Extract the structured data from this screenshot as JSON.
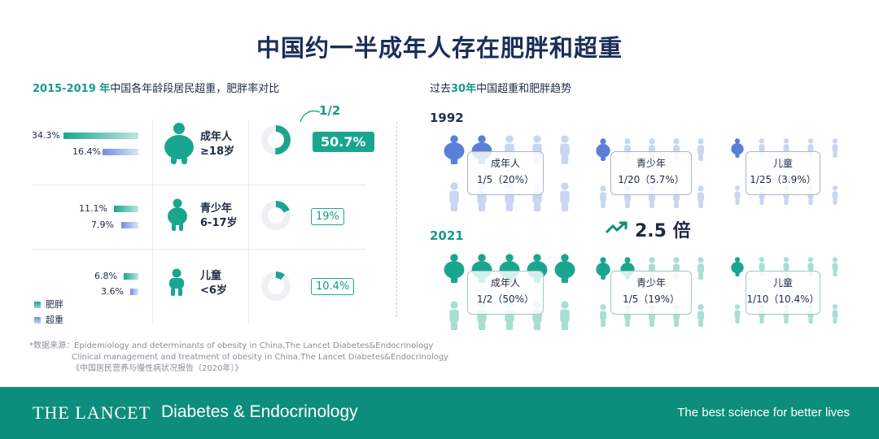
{
  "title": "中国约一半成年人存在肥胖和超重",
  "left": {
    "title_year": "2015-2019 年",
    "title_rest": "中国各年龄段居民超重，肥胖率对比",
    "half_label": "1/2",
    "rows": [
      {
        "ob_label": "34.3%",
        "ow_label": "16.4%",
        "name": "成年人",
        "age": "≥18岁",
        "callout": "50.7%"
      },
      {
        "ob_label": "11.1%",
        "ow_label": "7.9%",
        "name": "青少年",
        "age": "6-17岁",
        "callout": "19%"
      },
      {
        "ob_label": "6.8%",
        "ow_label": "3.6%",
        "name": "儿童",
        "age": "<6岁",
        "callout": "10.4%"
      }
    ],
    "legend": {
      "obese": "肥胖",
      "overweight": "超重"
    }
  },
  "chart_data": {
    "type": "bar",
    "categories": [
      "成年人",
      "青少年",
      "儿童"
    ],
    "series": [
      {
        "name": "肥胖",
        "values": [
          34.3,
          11.1,
          6.8
        ]
      },
      {
        "name": "超重",
        "values": [
          16.4,
          7.9,
          3.6
        ]
      }
    ],
    "donut_percent": [
      50.7,
      19,
      10.4
    ]
  },
  "source": {
    "lines": [
      "*数据来源：Epidemiology and determinants of obesity in China,The Lancet Diabetes&Endocrinology",
      "Clinical management and treatment of obesity in China,The Lancet Diabetes&Endocrinology",
      "《中国居民营养与慢性病状况报告（2020年）》"
    ]
  },
  "right": {
    "title_pre": "过去",
    "title_year": "30年",
    "title_rest": "中国超重和肥胖趋势",
    "y1992": "1992",
    "y2021": "2021",
    "growth": "2.5 倍",
    "groups1992": [
      {
        "name": "成年人",
        "ratio": "1/5（20%）"
      },
      {
        "name": "青少年",
        "ratio": "1/20（5.7%）"
      },
      {
        "name": "儿童",
        "ratio": "1/25（3.9%）"
      }
    ],
    "groups2021": [
      {
        "name": "成年人",
        "ratio": "1/2（50%）"
      },
      {
        "name": "青少年",
        "ratio": "1/5（19%）"
      },
      {
        "name": "儿童",
        "ratio": "1/10（10.4%）"
      }
    ]
  },
  "colors": {
    "teal": "#1aa68e",
    "blue": "#6f8ee0",
    "dark": "#1b2e5a",
    "footer": "#0d8d7c"
  },
  "footer": {
    "brand": "THE LANCET",
    "journal": "Diabetes & Endocrinology",
    "tagline": "The best science for better lives"
  }
}
